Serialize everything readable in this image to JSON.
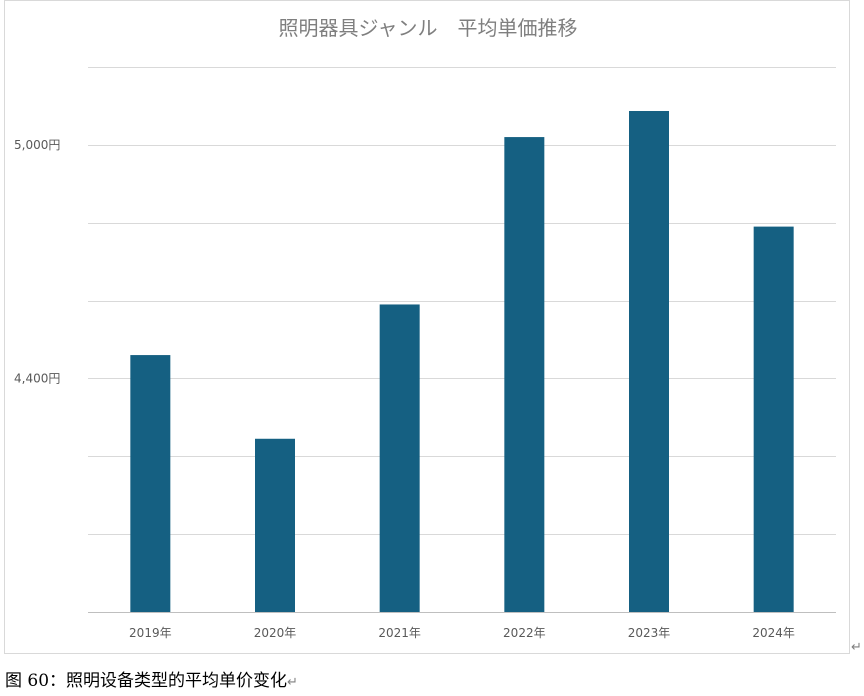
{
  "chart_data": {
    "type": "bar",
    "title": "照明器具ジャンル　平均単価推移",
    "categories": [
      "2019年",
      "2020年",
      "2021年",
      "2022年",
      "2023年",
      "2024年"
    ],
    "series": [
      {
        "values": [
          4460,
          4245,
          4590,
          5020,
          5087,
          4790
        ],
        "color": "#156082"
      }
    ],
    "ylim": [
      3800,
      5200
    ],
    "y_gridlines": [
      3800,
      4000,
      4200,
      4400,
      4600,
      4800,
      5000,
      5200
    ],
    "y_tick_labels": [
      {
        "value": 4400,
        "label": "4,400円"
      },
      {
        "value": 5000,
        "label": "5,000円"
      }
    ],
    "xlabel": "",
    "ylabel": "",
    "grid": true,
    "legend": "none"
  },
  "caption": {
    "text": "图 60：照明设备类型的平均单价变化",
    "mark": "↵"
  },
  "frame_mark": "↵"
}
